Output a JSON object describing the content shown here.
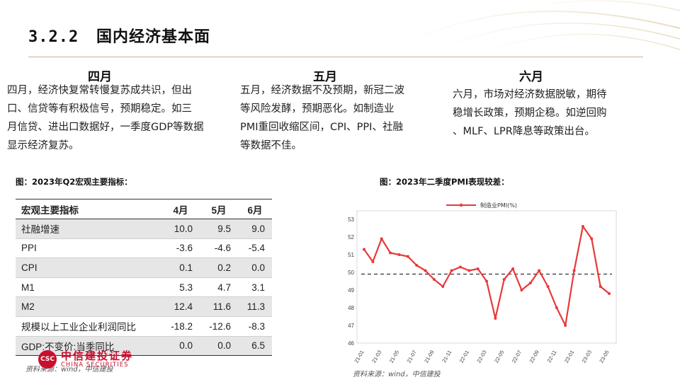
{
  "header": {
    "number": "3.2.2",
    "title": "国内经济基本面"
  },
  "columns": [
    {
      "head": "四月",
      "lines": [
        "四月，经济快复常转慢复苏成共识，但出",
        "口、信贷等有积极信号，预期稳定。如三",
        "月信贷、进出口数据好，一季度GDP等数据",
        "显示经济复苏。"
      ]
    },
    {
      "head": "五月",
      "lines": [
        "五月，经济数据不及预期，新冠二波",
        "等风险发酵，预期恶化。如制造业",
        "PMI重回收缩区间，CPI、PPI、社融",
        "等数据不佳。"
      ]
    },
    {
      "head": "六月",
      "lines": [
        "六月，市场对经济数据脱敏，期待",
        "稳增长政策，预期企稳。如逆回购",
        "、MLF、LPR降息等政策出台。"
      ]
    }
  ],
  "table": {
    "caption": "图：2023年Q2宏观主要指标：",
    "headers": [
      "宏观主要指标",
      "4月",
      "5月",
      "6月"
    ],
    "rows": [
      {
        "label": "社融增速",
        "values": [
          "10.0",
          "9.5",
          "9.0"
        ]
      },
      {
        "label": "PPI",
        "values": [
          "-3.6",
          "-4.6",
          "-5.4"
        ]
      },
      {
        "label": "CPI",
        "values": [
          "0.1",
          "0.2",
          "0.0"
        ]
      },
      {
        "label": "M1",
        "values": [
          "5.3",
          "4.7",
          "3.1"
        ]
      },
      {
        "label": "M2",
        "values": [
          "12.4",
          "11.6",
          "11.3"
        ]
      },
      {
        "label": "规模以上工业企业利润同比",
        "values": [
          "-18.2",
          "-12.6",
          "-8.3"
        ]
      },
      {
        "label": "GDP:不变价:当季同比",
        "values": [
          "0.0",
          "0.0",
          "6.5"
        ]
      }
    ],
    "source": "资料来源：wind，中信建投"
  },
  "logo": {
    "cn": "中信建投证券",
    "en": "CHINA SECURITIES",
    "mark": "CSC"
  },
  "chart_caption": "图：2023年二季度PMI表现较差：",
  "chart_source": "资料来源：wind，中信建投",
  "colors": {
    "series": "#e8393a",
    "reference": "#333333",
    "rule": "#c9b58a",
    "brand": "#c8102e"
  },
  "chart_data": {
    "type": "line",
    "title": "",
    "xlabel": "",
    "ylabel": "",
    "ylim": [
      46,
      53
    ],
    "yticks": [
      46,
      47,
      48,
      49,
      50,
      51,
      52,
      53
    ],
    "x": [
      "21-01",
      "21-02",
      "21-03",
      "21-04",
      "21-05",
      "21-06",
      "21-07",
      "21-08",
      "21-09",
      "21-10",
      "21-11",
      "21-12",
      "22-01",
      "22-02",
      "22-03",
      "22-04",
      "22-05",
      "22-06",
      "22-07",
      "22-08",
      "22-09",
      "22-10",
      "22-11",
      "22-12",
      "23-01",
      "23-02",
      "23-03",
      "23-04",
      "23-05"
    ],
    "xticks": [
      "21-01",
      "21-03",
      "21-05",
      "21-07",
      "21-09",
      "21-11",
      "22-01",
      "22-03",
      "22-05",
      "22-07",
      "22-09",
      "22-11",
      "23-01",
      "23-03",
      "23-05"
    ],
    "reference_line": 49.9,
    "grid": false,
    "legend_position": "top-center",
    "series": [
      {
        "name": "制造业PMI(%)",
        "values": [
          51.3,
          50.6,
          51.9,
          51.1,
          51.0,
          50.9,
          50.4,
          50.1,
          49.6,
          49.2,
          50.1,
          50.3,
          50.1,
          50.2,
          49.5,
          47.4,
          49.6,
          50.2,
          49.0,
          49.4,
          50.1,
          49.2,
          48.0,
          47.0,
          50.1,
          52.6,
          51.9,
          49.2,
          48.8
        ]
      }
    ]
  }
}
